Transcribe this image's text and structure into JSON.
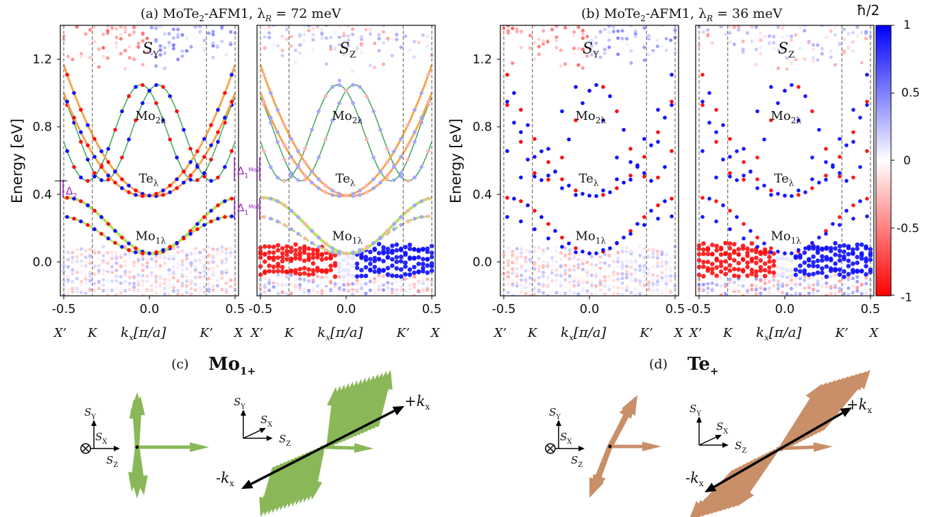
{
  "panels": [
    {
      "title_prefix": "(a) MoTe",
      "title_sub": "2",
      "title_mid": "-AFM1, λ",
      "title_sub2": "R",
      "title_end": " = 72 meV"
    },
    {
      "title_prefix": "(b) MoTe",
      "title_sub": "2",
      "title_mid": "-AFM1, λ",
      "title_sub2": "R",
      "title_end": " = 36 meV"
    }
  ],
  "axes": {
    "ylabel": "Energy [eV]",
    "yticks": [
      "1.2",
      "0.8",
      "0.4",
      "0.0"
    ],
    "xticks": [
      "-0.5",
      "0.0",
      "0.5"
    ],
    "kpoints": [
      "X’",
      "K",
      "K’",
      "X"
    ],
    "xlabel_k": "k",
    "xlabel_sub": "x",
    "xlabel_unit": "[π/a]"
  },
  "spin_labels": {
    "sy": "S",
    "sy_sub": "Y",
    "sz": "S",
    "sz_sub": "Z"
  },
  "band_labels": {
    "mo2": "Mo",
    "mo2_sub": "2λ",
    "te": "Te",
    "te_sub": "λ",
    "mo1": "Mo",
    "mo1_sub": "1λ"
  },
  "gap_labels": {
    "d1": "Δ",
    "d1_sub": "1",
    "d1_mo2": "Mo2",
    "d1_mo1": "Mo1",
    "d2": "Δ",
    "d2_sub": "2"
  },
  "colorbar": {
    "label": "ħ/2",
    "ticks": [
      "1",
      "0.5",
      "0",
      "-0.5",
      "-1"
    ],
    "colors": {
      "positive": "#0000ff",
      "zero": "#ffffff",
      "negative": "#ff0000"
    }
  },
  "bottom": {
    "c_prefix": "(c)",
    "c_name": "Mo",
    "c_sub": "1+",
    "d_prefix": "(d)",
    "d_name": "Te",
    "d_sub": "+",
    "axis_sy": "S",
    "axis_sy_sub": "Y",
    "axis_sx": "S",
    "axis_sx_sub": "X",
    "axis_sz": "S",
    "axis_sz_sub": "Z",
    "kplus": "+k",
    "kminus": "-k",
    "k_sub": "x",
    "colors": {
      "mo_arrow": "#8ab858",
      "te_arrow": "#c98f68"
    }
  },
  "chart_data": {
    "type": "scatter",
    "x_range": [
      -0.5,
      0.5
    ],
    "y_range": [
      -0.2,
      1.4
    ],
    "band_centers": {
      "mo2_top_eV": 1.06,
      "te_bottom_eV": 0.39,
      "mo1_bottom_eV": 0.05,
      "mo1_top_eV": 0.38
    },
    "colorscale_range": [
      -1,
      1
    ]
  }
}
